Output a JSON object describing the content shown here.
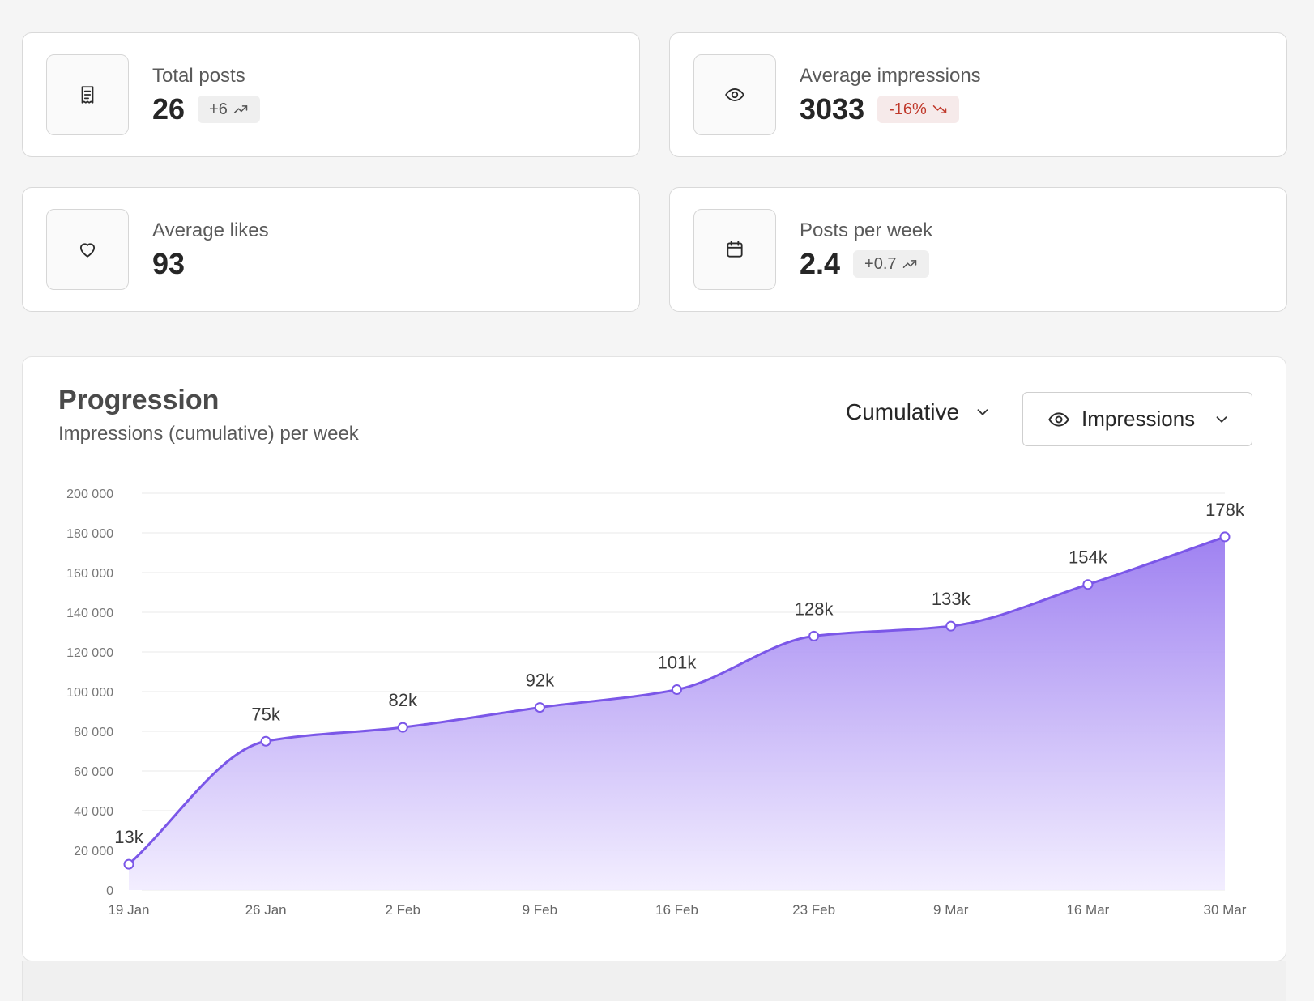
{
  "stats": [
    {
      "label": "Total posts",
      "value": "26",
      "badge": "+6",
      "trend": "up",
      "icon": "receipt-icon"
    },
    {
      "label": "Average impressions",
      "value": "3033",
      "badge": "-16%",
      "trend": "down",
      "icon": "eye-icon"
    },
    {
      "label": "Average likes",
      "value": "93",
      "badge": null,
      "trend": null,
      "icon": "heart-icon"
    },
    {
      "label": "Posts per week",
      "value": "2.4",
      "badge": "+0.7",
      "trend": "up",
      "icon": "calendar-icon"
    }
  ],
  "progression": {
    "title": "Progression",
    "subtitle": "Impressions (cumulative) per week",
    "mode_label": "Cumulative",
    "metric_label": "Impressions"
  },
  "colors": {
    "accent": "#7b57e8",
    "accent_fill_top": "#9a7bf0",
    "accent_fill_bottom": "#f1ecff",
    "negative": "#c0392b"
  },
  "chart_data": {
    "type": "area",
    "title": "",
    "xlabel": "",
    "ylabel": "",
    "categories": [
      "19 Jan",
      "26 Jan",
      "2 Feb",
      "9 Feb",
      "16 Feb",
      "23 Feb",
      "9 Mar",
      "16 Mar",
      "30 Mar"
    ],
    "values": [
      13000,
      75000,
      82000,
      92000,
      101000,
      128000,
      133000,
      154000,
      178000
    ],
    "data_labels": [
      "13k",
      "75k",
      "82k",
      "92k",
      "101k",
      "128k",
      "133k",
      "154k",
      "178k"
    ],
    "ylim": [
      0,
      200000
    ],
    "yticks": [
      0,
      20000,
      40000,
      60000,
      80000,
      100000,
      120000,
      140000,
      160000,
      180000,
      200000
    ],
    "ytick_labels": [
      "0",
      "20 000",
      "40 000",
      "60 000",
      "80 000",
      "100 000",
      "120 000",
      "140 000",
      "160 000",
      "180 000",
      "200 000"
    ],
    "grid": true,
    "legend": "none"
  }
}
